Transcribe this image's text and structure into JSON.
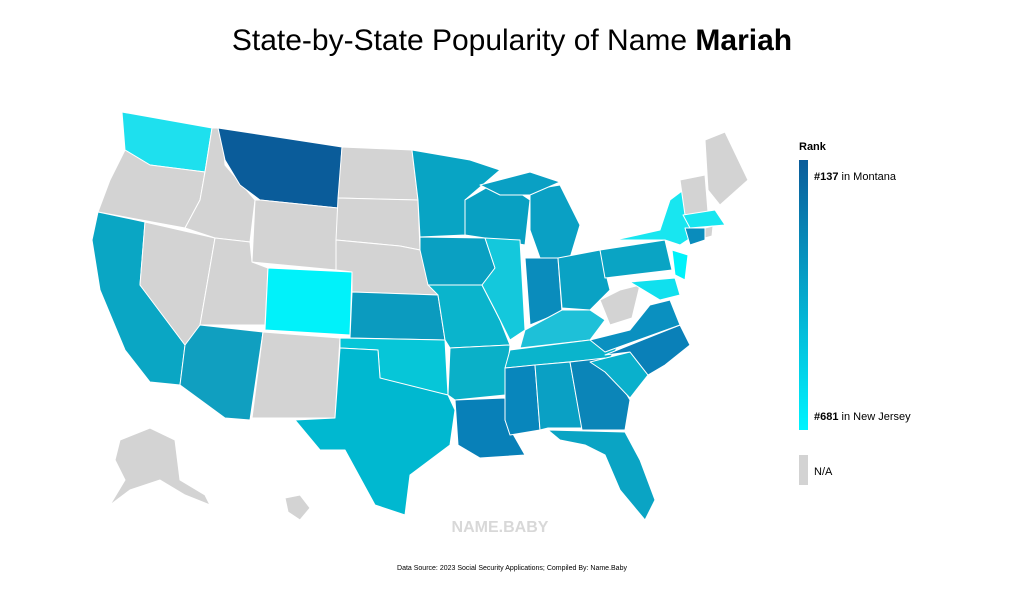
{
  "header": {
    "title": "State-by-State Popularity of Name",
    "title_bold": "Mariah"
  },
  "legend": {
    "title": "Rank",
    "top": {
      "rank": "#137",
      "text": "in Montana"
    },
    "bottom": {
      "rank": "#681",
      "text": "in New Jersey"
    },
    "na": "N/A",
    "gradient_top_color": "#0a5c9a",
    "gradient_bottom_color": "#00f4ff",
    "na_color": "#d3d3d3"
  },
  "watermark": "NAME.BABY",
  "footer": {
    "source": "Data Source: 2023 Social Security Applications; Compiled By: Name.Baby"
  }
}
